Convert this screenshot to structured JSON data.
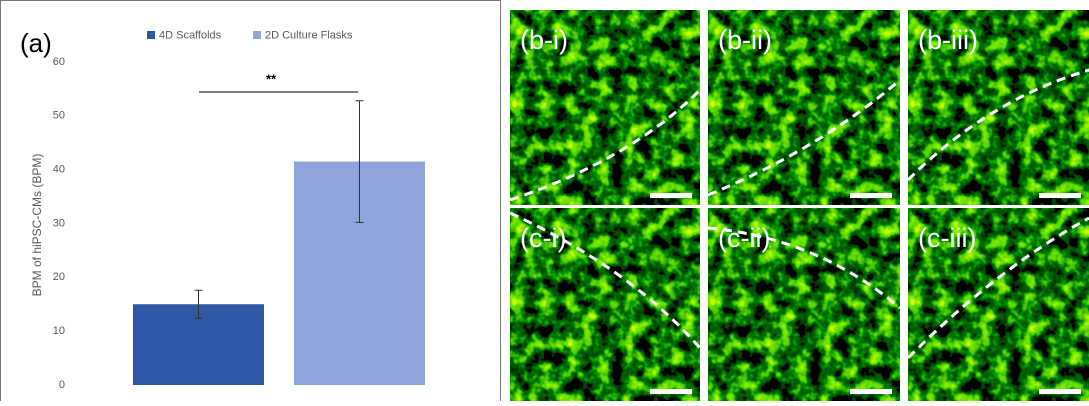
{
  "chart_data": {
    "type": "bar",
    "panel_label": "(a)",
    "ylabel": "BPM of hiPSC-CMs (BPM)",
    "categories": [
      null
    ],
    "series": [
      {
        "name": "4D Scaffolds",
        "color": "#2e58a6",
        "values": [
          15
        ],
        "errors": [
          2.6
        ]
      },
      {
        "name": "2D Culture Flasks",
        "color": "#8ea4da",
        "values": [
          41.5
        ],
        "errors": [
          11.3
        ]
      }
    ],
    "ylim": [
      0,
      60
    ],
    "yticks": [
      0,
      10,
      20,
      30,
      40,
      50,
      60
    ],
    "grid": false,
    "significance": "**"
  },
  "panels": [
    "(b-i)",
    "(b-ii)",
    "(b-iii)",
    "(c-i)",
    "(c-ii)",
    "(c-iii)"
  ]
}
